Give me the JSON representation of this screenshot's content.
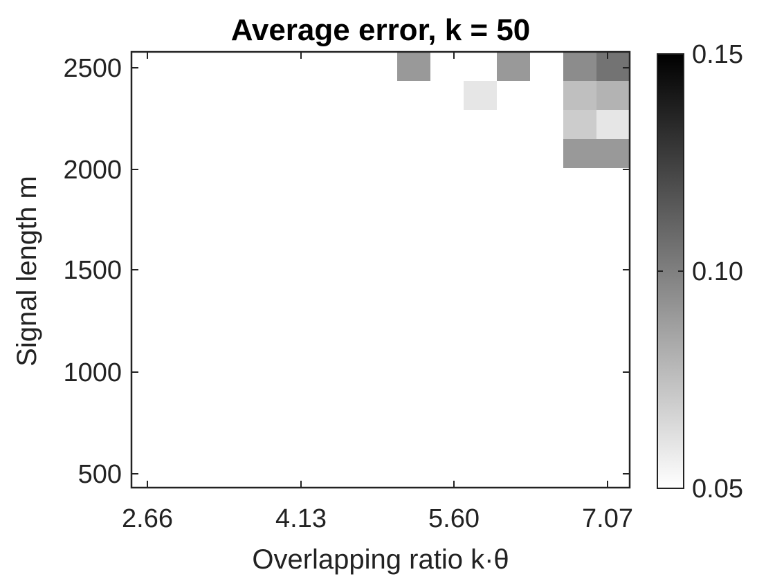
{
  "chart_data": {
    "type": "heatmap",
    "title": "Average error, k = 50",
    "xlabel": "Overlapping ratio k·θ",
    "ylabel": "Signal length m",
    "x_ticks": [
      "2.66",
      "4.13",
      "5.60",
      "7.07"
    ],
    "y_ticks": [
      "500",
      "1000",
      "1500",
      "2000",
      "2500"
    ],
    "x_range": [
      2.66,
      7.07
    ],
    "y_range": [
      500,
      2500
    ],
    "n_cols": 15,
    "n_rows": 15,
    "grid": false,
    "colormap": "gray",
    "colorbar": {
      "ticks": [
        "0.15",
        "0.10",
        "0.05"
      ],
      "min": 0.05,
      "max": 0.15
    },
    "values": [
      [
        0.05,
        0.05,
        0.05,
        0.05,
        0.05,
        0.05,
        0.05,
        0.05,
        0.09,
        0.05,
        0.05,
        0.09,
        0.05,
        0.095,
        0.105
      ],
      [
        0.05,
        0.05,
        0.05,
        0.05,
        0.05,
        0.05,
        0.05,
        0.05,
        0.05,
        0.05,
        0.06,
        0.05,
        0.05,
        0.075,
        0.08
      ],
      [
        0.05,
        0.05,
        0.05,
        0.05,
        0.05,
        0.05,
        0.05,
        0.05,
        0.05,
        0.05,
        0.05,
        0.05,
        0.05,
        0.07,
        0.06
      ],
      [
        0.05,
        0.05,
        0.05,
        0.05,
        0.05,
        0.05,
        0.05,
        0.05,
        0.05,
        0.05,
        0.05,
        0.05,
        0.05,
        0.09,
        0.09
      ],
      [
        0.05,
        0.05,
        0.05,
        0.05,
        0.05,
        0.05,
        0.05,
        0.05,
        0.05,
        0.05,
        0.05,
        0.05,
        0.05,
        0.05,
        0.05
      ],
      [
        0.05,
        0.05,
        0.05,
        0.05,
        0.05,
        0.05,
        0.05,
        0.05,
        0.05,
        0.05,
        0.05,
        0.05,
        0.05,
        0.05,
        0.05
      ],
      [
        0.05,
        0.05,
        0.05,
        0.05,
        0.05,
        0.05,
        0.05,
        0.05,
        0.05,
        0.05,
        0.05,
        0.05,
        0.05,
        0.05,
        0.05
      ],
      [
        0.05,
        0.05,
        0.05,
        0.05,
        0.05,
        0.05,
        0.05,
        0.05,
        0.05,
        0.05,
        0.05,
        0.05,
        0.05,
        0.05,
        0.05
      ],
      [
        0.05,
        0.05,
        0.05,
        0.05,
        0.05,
        0.05,
        0.05,
        0.05,
        0.05,
        0.05,
        0.05,
        0.05,
        0.05,
        0.05,
        0.05
      ],
      [
        0.05,
        0.05,
        0.05,
        0.05,
        0.05,
        0.05,
        0.05,
        0.05,
        0.05,
        0.05,
        0.05,
        0.05,
        0.05,
        0.05,
        0.05
      ],
      [
        0.05,
        0.05,
        0.05,
        0.05,
        0.05,
        0.05,
        0.05,
        0.05,
        0.05,
        0.05,
        0.05,
        0.05,
        0.05,
        0.05,
        0.05
      ],
      [
        0.05,
        0.05,
        0.05,
        0.05,
        0.05,
        0.05,
        0.05,
        0.05,
        0.05,
        0.05,
        0.05,
        0.05,
        0.05,
        0.05,
        0.05
      ],
      [
        0.05,
        0.05,
        0.05,
        0.05,
        0.05,
        0.05,
        0.05,
        0.05,
        0.05,
        0.05,
        0.05,
        0.05,
        0.05,
        0.05,
        0.05
      ],
      [
        0.05,
        0.05,
        0.05,
        0.05,
        0.05,
        0.05,
        0.05,
        0.05,
        0.05,
        0.05,
        0.05,
        0.05,
        0.05,
        0.05,
        0.05
      ],
      [
        0.05,
        0.05,
        0.05,
        0.05,
        0.05,
        0.05,
        0.05,
        0.05,
        0.05,
        0.05,
        0.05,
        0.05,
        0.05,
        0.05,
        0.05
      ]
    ]
  }
}
